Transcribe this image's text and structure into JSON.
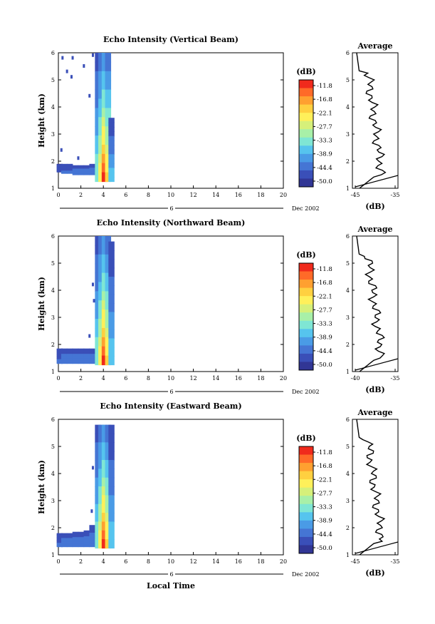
{
  "figure": {
    "xlabel": "Local Time",
    "date_label": "6",
    "date_suffix": "Dec 2002",
    "colorbar_unit": "(dB)",
    "avg_title": "Average",
    "avg_xlabel": "(dB)"
  },
  "chart_data": [
    {
      "type": "heatmap",
      "title": "Echo Intensity (Vertical Beam)",
      "xlabel": "Local Time",
      "ylabel": "Height (km)",
      "xlim": [
        0,
        20
      ],
      "ylim": [
        1,
        6
      ],
      "xticks": [
        0,
        2,
        4,
        6,
        8,
        10,
        12,
        14,
        16,
        18,
        20
      ],
      "yticks": [
        1,
        2,
        3,
        4,
        5,
        6
      ],
      "colorbar": {
        "label": "(dB)",
        "ticks": [
          -11.8,
          -16.8,
          -22.1,
          -27.7,
          -33.3,
          -38.9,
          -44.4,
          -50.0
        ]
      },
      "echo": {
        "columns": [
          {
            "time": 0.1,
            "top": 1.9,
            "bottom": 1.6,
            "level": 0.1
          },
          {
            "time": 0.5,
            "top": 1.9,
            "bottom": 1.55,
            "level": 0.15
          },
          {
            "time": 1.0,
            "top": 1.9,
            "bottom": 1.55,
            "level": 0.15
          },
          {
            "time": 1.5,
            "top": 1.85,
            "bottom": 1.5,
            "level": 0.2
          },
          {
            "time": 2.0,
            "top": 1.85,
            "bottom": 1.5,
            "level": 0.2
          },
          {
            "time": 2.5,
            "top": 1.85,
            "bottom": 1.5,
            "level": 0.2
          },
          {
            "time": 3.0,
            "top": 1.9,
            "bottom": 1.5,
            "level": 0.2
          },
          {
            "time": 3.5,
            "top": 6.0,
            "bottom": 1.25,
            "level": 0.45
          },
          {
            "time": 3.8,
            "top": 6.0,
            "bottom": 1.25,
            "level": 0.7
          },
          {
            "time": 4.1,
            "top": 6.0,
            "bottom": 1.25,
            "level": 1.0
          },
          {
            "time": 4.4,
            "top": 6.0,
            "bottom": 1.25,
            "level": 0.75
          },
          {
            "time": 4.7,
            "top": 3.6,
            "bottom": 1.25,
            "level": 0.35
          }
        ],
        "sparse": [
          {
            "time": 0.4,
            "height": 5.8
          },
          {
            "time": 1.3,
            "height": 5.8
          },
          {
            "time": 2.3,
            "height": 5.5
          },
          {
            "time": 1.2,
            "height": 5.1
          },
          {
            "time": 0.8,
            "height": 5.3
          },
          {
            "time": 2.8,
            "height": 4.4
          },
          {
            "time": 0.3,
            "height": 2.4
          },
          {
            "time": 1.8,
            "height": 2.1
          },
          {
            "time": 3.1,
            "height": 5.9
          }
        ]
      },
      "average": {
        "xlim": [
          -45,
          -35
        ],
        "xticks": [
          -45,
          -35
        ],
        "ylim": [
          1,
          6
        ]
      }
    },
    {
      "type": "heatmap",
      "title": "Echo Intensity (Northward Beam)",
      "xlabel": "Local Time",
      "ylabel": "Height (km)",
      "xlim": [
        0,
        20
      ],
      "ylim": [
        1,
        6
      ],
      "xticks": [
        0,
        2,
        4,
        6,
        8,
        10,
        12,
        14,
        16,
        18,
        20
      ],
      "yticks": [
        1,
        2,
        3,
        4,
        5,
        6
      ],
      "colorbar": {
        "label": "(dB)",
        "ticks": [
          -11.8,
          -16.8,
          -22.1,
          -27.7,
          -33.3,
          -38.9,
          -44.4,
          -50.0
        ]
      },
      "echo": {
        "columns": [
          {
            "time": 0.1,
            "top": 1.85,
            "bottom": 1.3,
            "level": 0.15
          },
          {
            "time": 0.5,
            "top": 1.85,
            "bottom": 1.3,
            "level": 0.2
          },
          {
            "time": 1.0,
            "top": 1.85,
            "bottom": 1.3,
            "level": 0.2
          },
          {
            "time": 1.5,
            "top": 1.85,
            "bottom": 1.3,
            "level": 0.2
          },
          {
            "time": 2.0,
            "top": 1.85,
            "bottom": 1.3,
            "level": 0.2
          },
          {
            "time": 2.5,
            "top": 1.85,
            "bottom": 1.3,
            "level": 0.2
          },
          {
            "time": 3.0,
            "top": 1.85,
            "bottom": 1.3,
            "level": 0.2
          },
          {
            "time": 3.5,
            "top": 6.0,
            "bottom": 1.25,
            "level": 0.45
          },
          {
            "time": 3.8,
            "top": 6.0,
            "bottom": 1.25,
            "level": 0.7
          },
          {
            "time": 4.1,
            "top": 6.0,
            "bottom": 1.25,
            "level": 1.0
          },
          {
            "time": 4.4,
            "top": 6.0,
            "bottom": 1.25,
            "level": 0.75
          },
          {
            "time": 4.7,
            "top": 5.8,
            "bottom": 1.25,
            "level": 0.35
          }
        ],
        "sparse": [
          {
            "time": 3.1,
            "height": 4.2
          },
          {
            "time": 3.2,
            "height": 3.6
          },
          {
            "time": 2.8,
            "height": 2.3
          }
        ]
      },
      "average": {
        "xlim": [
          -40,
          -35
        ],
        "xticks": [
          -40,
          -35
        ],
        "ylim": [
          1,
          6
        ]
      }
    },
    {
      "type": "heatmap",
      "title": "Echo Intensity (Eastward Beam)",
      "xlabel": "Local Time",
      "ylabel": "Height (km)",
      "xlim": [
        0,
        20
      ],
      "ylim": [
        1,
        6
      ],
      "xticks": [
        0,
        2,
        4,
        6,
        8,
        10,
        12,
        14,
        16,
        18,
        20
      ],
      "yticks": [
        1,
        2,
        3,
        4,
        5,
        6
      ],
      "colorbar": {
        "label": "(dB)",
        "ticks": [
          -11.8,
          -16.8,
          -22.1,
          -27.7,
          -33.3,
          -38.9,
          -44.4,
          -50.0
        ]
      },
      "echo": {
        "columns": [
          {
            "time": 0.1,
            "top": 1.8,
            "bottom": 1.3,
            "level": 0.15
          },
          {
            "time": 0.5,
            "top": 1.8,
            "bottom": 1.3,
            "level": 0.2
          },
          {
            "time": 1.0,
            "top": 1.8,
            "bottom": 1.3,
            "level": 0.2
          },
          {
            "time": 1.5,
            "top": 1.85,
            "bottom": 1.3,
            "level": 0.2
          },
          {
            "time": 2.0,
            "top": 1.85,
            "bottom": 1.3,
            "level": 0.2
          },
          {
            "time": 2.5,
            "top": 1.9,
            "bottom": 1.3,
            "level": 0.2
          },
          {
            "time": 3.0,
            "top": 2.1,
            "bottom": 1.3,
            "level": 0.2
          },
          {
            "time": 3.5,
            "top": 5.8,
            "bottom": 1.25,
            "level": 0.45
          },
          {
            "time": 3.8,
            "top": 5.8,
            "bottom": 1.25,
            "level": 0.7
          },
          {
            "time": 4.1,
            "top": 5.8,
            "bottom": 1.25,
            "level": 1.0
          },
          {
            "time": 4.4,
            "top": 5.8,
            "bottom": 1.25,
            "level": 0.75
          },
          {
            "time": 4.7,
            "top": 5.8,
            "bottom": 1.25,
            "level": 0.35
          }
        ],
        "sparse": [
          {
            "time": 3.1,
            "height": 4.2
          },
          {
            "time": 3.0,
            "height": 2.6
          }
        ]
      },
      "average": {
        "xlim": [
          -45,
          -35
        ],
        "xticks": [
          -45,
          -35
        ],
        "ylim": [
          1,
          6
        ]
      }
    }
  ],
  "colors": {
    "colormap": [
      "#313695",
      "#3a4fb8",
      "#4575d4",
      "#4a9be6",
      "#56c4ee",
      "#7fe6d4",
      "#a8f0a8",
      "#d6f07a",
      "#fff05a",
      "#ffd040",
      "#ffa030",
      "#ff6a28",
      "#f02a1c"
    ]
  }
}
